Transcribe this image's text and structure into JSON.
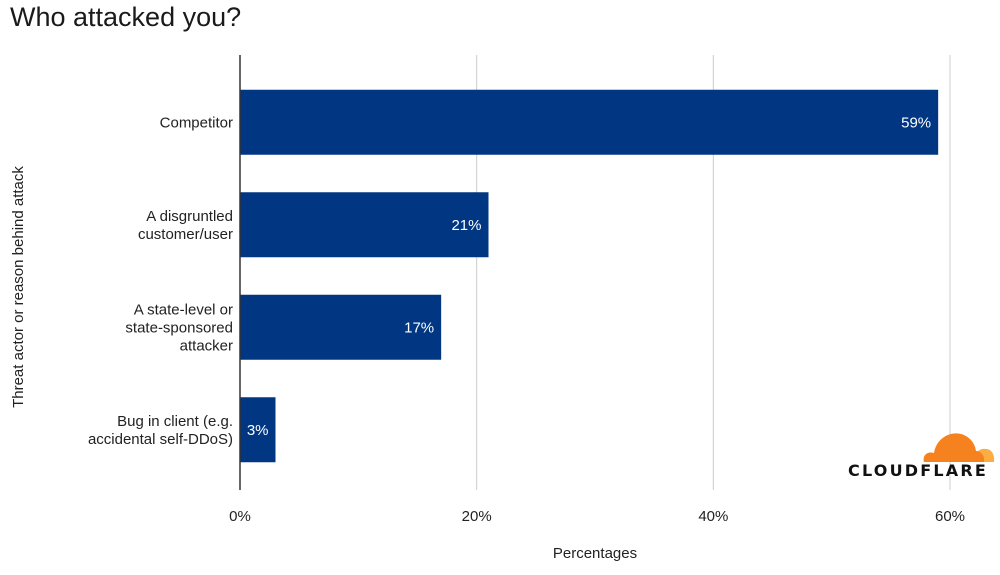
{
  "chart_data": {
    "type": "bar",
    "orientation": "horizontal",
    "title": "Who attacked you?",
    "xlabel": "Percentages",
    "ylabel": "Threat actor or reason behind attack",
    "categories": [
      [
        "Competitor"
      ],
      [
        "A disgruntled",
        "customer/user"
      ],
      [
        "A state-level or",
        "state-sponsored",
        "attacker"
      ],
      [
        "Bug in client (e.g.",
        "accidental self-DDoS)"
      ]
    ],
    "values": [
      59,
      21,
      17,
      3
    ],
    "data_labels": [
      "59%",
      "21%",
      "17%",
      "3%"
    ],
    "xlim": [
      0,
      60
    ],
    "xticks": [
      0,
      20,
      40,
      60
    ],
    "xtick_labels": [
      "0%",
      "20%",
      "40%",
      "60%"
    ],
    "grid": true,
    "bar_color": "#003682",
    "grid_color": "#cccccc"
  },
  "logo": {
    "text": "CLOUDFLARE",
    "colors": [
      "#f6821f",
      "#fbad41"
    ]
  }
}
